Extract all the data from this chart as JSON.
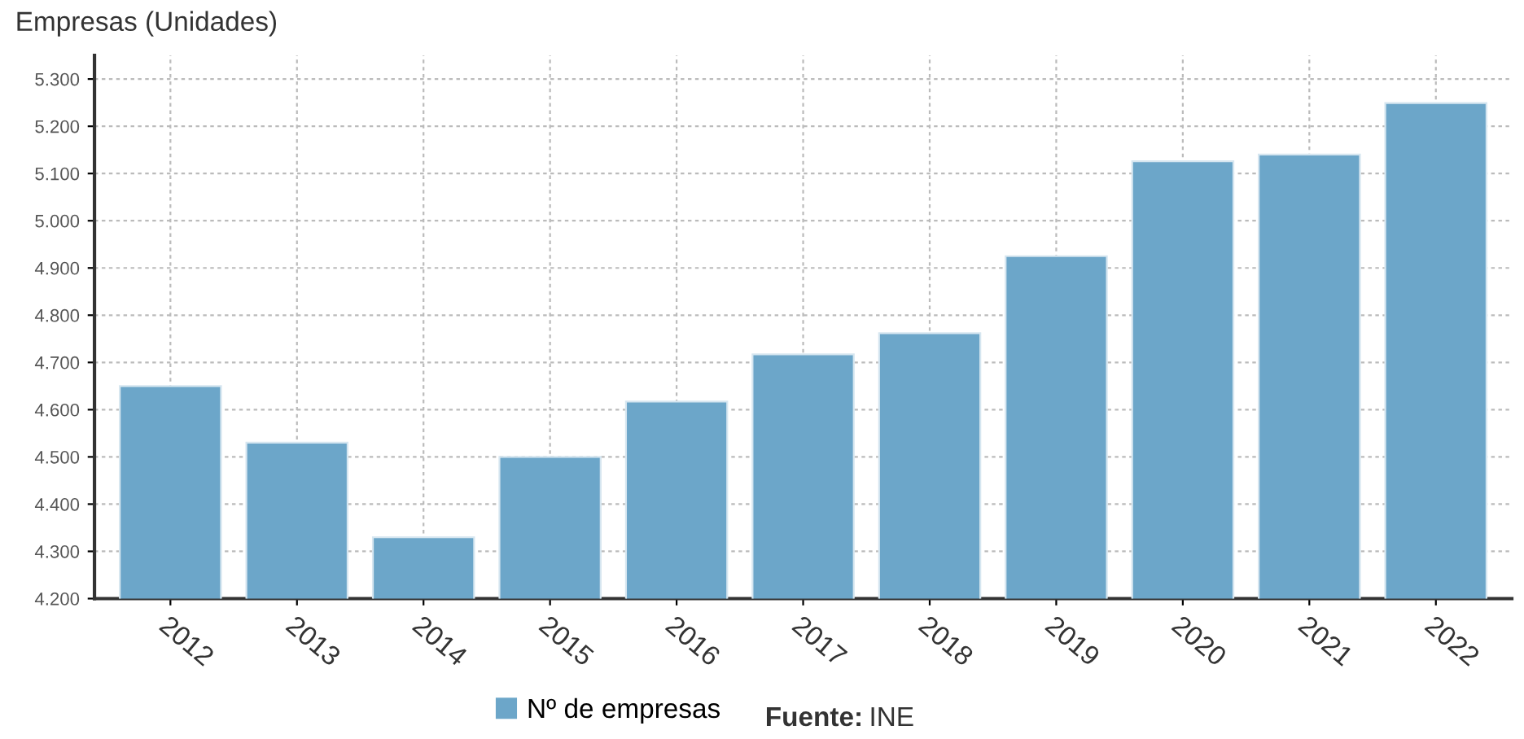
{
  "chart_data": {
    "type": "bar",
    "ylabel": "Empresas (Unidades)",
    "categories": [
      "2012",
      "2013",
      "2014",
      "2015",
      "2016",
      "2017",
      "2018",
      "2019",
      "2020",
      "2021",
      "2022"
    ],
    "series": [
      {
        "name": "Nº de empresas",
        "color": "#6ca6c9",
        "values": [
          4650,
          4530,
          4330,
          4500,
          4617,
          4717,
          4762,
          4925,
          5126,
          5140,
          5249
        ]
      }
    ],
    "ylim": [
      4200,
      5350
    ],
    "yticks": [
      {
        "value": 4200,
        "label": "4.200"
      },
      {
        "value": 4300,
        "label": "4.300"
      },
      {
        "value": 4400,
        "label": "4.400"
      },
      {
        "value": 4500,
        "label": "4.500"
      },
      {
        "value": 4600,
        "label": "4.600"
      },
      {
        "value": 4700,
        "label": "4.700"
      },
      {
        "value": 4800,
        "label": "4.800"
      },
      {
        "value": 4900,
        "label": "4.900"
      },
      {
        "value": 5000,
        "label": "5.000"
      },
      {
        "value": 5100,
        "label": "5.100"
      },
      {
        "value": 5200,
        "label": "5.200"
      },
      {
        "value": 5300,
        "label": "5.300"
      }
    ],
    "grid": true,
    "legend": "bottom",
    "annotations": [
      "Fuente: INE"
    ]
  }
}
